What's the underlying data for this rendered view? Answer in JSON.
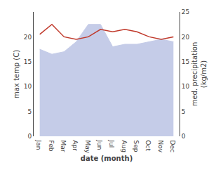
{
  "chart_data": {
    "type": "line",
    "categories": [
      "Jan",
      "Feb",
      "Mar",
      "Apr",
      "May",
      "Jun",
      "Jul",
      "Aug",
      "Sep",
      "Oct",
      "Nov",
      "Dec"
    ],
    "series": [
      {
        "type": "area",
        "color": "#c5cce8",
        "values": [
          17.5,
          16.5,
          17.0,
          19.0,
          22.5,
          22.5,
          18.0,
          18.5,
          18.5,
          19.0,
          19.5,
          19.0
        ]
      },
      {
        "type": "line",
        "color": "#c0392b",
        "axis": "y2",
        "values": [
          20.5,
          22.5,
          20.0,
          19.5,
          20.0,
          21.5,
          21.0,
          21.5,
          21.0,
          20.0,
          19.5,
          20.0
        ]
      }
    ],
    "xlabel": "date (month)",
    "ylabel": "max temp (C)",
    "y2label": "med. precipitation\n(kg/m2)",
    "ylim": [
      0,
      25
    ],
    "yticks": [
      0,
      5,
      10,
      15,
      20
    ],
    "y2lim": [
      0,
      25
    ],
    "y2ticks": [
      0,
      5,
      10,
      15,
      20,
      25
    ],
    "grid": false
  }
}
